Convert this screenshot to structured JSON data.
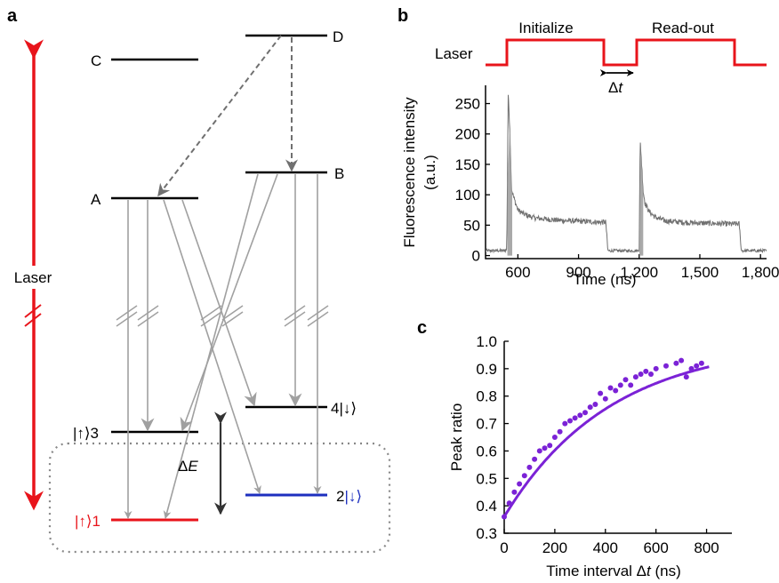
{
  "panel_a": {
    "panel_label": "a",
    "laser_label": "Laser",
    "levels": {
      "C": "C",
      "D": "D",
      "A": "A",
      "B": "B",
      "up3": "|↑⟩3",
      "down4": "4|↓⟩",
      "up1": "|↑⟩1",
      "down2_prefix": "2",
      "down2_ket": "|↓⟩"
    },
    "delta_e": {
      "symbol": "Δ",
      "letter": "E"
    },
    "colors": {
      "laser": "#e8141b",
      "up1_level": "#e8141b",
      "down2_level": "#1d2fbf",
      "arrow_gray": "#a0a0a0",
      "dashed_arrow": "#707070",
      "dotted_box": "#888888"
    }
  },
  "panel_b": {
    "panel_label": "b",
    "laser_label": "Laser",
    "pulse_labels": {
      "initialize": "Initialize",
      "readout": "Read-out"
    },
    "delta_t": {
      "symbol": "Δ",
      "letter": "t"
    },
    "trace_color": "#707070",
    "pulse_color": "#e8141b"
  },
  "panel_c": {
    "panel_label": "c",
    "fit_color": "#7b22d6"
  },
  "chart_data": [
    {
      "type": "line",
      "panel": "b",
      "xlabel": "Time (ns)",
      "ylabel": "Fluorescence intensity (a.u.)",
      "ylabel_lines": [
        "Fluorescence intensity",
        "(a.u.)"
      ],
      "x_ticks": [
        "600",
        "900",
        "1,200",
        "1,500",
        "1,800"
      ],
      "x_tick_values": [
        600,
        900,
        1200,
        1500,
        1800
      ],
      "y_ticks": [
        "0",
        "50",
        "100",
        "150",
        "200",
        "250"
      ],
      "y_tick_values": [
        0,
        50,
        100,
        150,
        200,
        250
      ],
      "xlim": [
        440,
        1830
      ],
      "ylim": [
        -5,
        280
      ],
      "grid": false,
      "series": [
        {
          "x": [
            440,
            535,
            545,
            552,
            560,
            568,
            580,
            600,
            630,
            680,
            800,
            1000,
            1035,
            1045,
            1100,
            1190,
            1200,
            1205,
            1212,
            1220,
            1230,
            1250,
            1280,
            1330,
            1450,
            1650,
            1695,
            1705,
            1760,
            1830
          ],
          "y": [
            8,
            8,
            10,
            265,
            210,
            110,
            95,
            75,
            68,
            62,
            58,
            55,
            55,
            8,
            8,
            8,
            10,
            190,
            150,
            105,
            85,
            72,
            63,
            57,
            54,
            52,
            52,
            8,
            8,
            8
          ]
        }
      ]
    },
    {
      "type": "scatter",
      "panel": "c",
      "xlabel_text": "Time interval ",
      "xlabel_symbol": "Δ",
      "xlabel_var": "t",
      "xlabel_unit": " (ns)",
      "ylabel": "Peak ratio",
      "x_ticks": [
        "0",
        "200",
        "400",
        "600",
        "800"
      ],
      "x_tick_values": [
        0,
        200,
        400,
        600,
        800
      ],
      "y_ticks": [
        "0.3",
        "0.4",
        "0.5",
        "0.6",
        "0.7",
        "0.8",
        "0.9",
        "1.0"
      ],
      "y_tick_values": [
        0.3,
        0.4,
        0.5,
        0.6,
        0.7,
        0.8,
        0.9,
        1.0
      ],
      "xlim": [
        0,
        900
      ],
      "ylim": [
        0.3,
        1.0
      ],
      "grid": false,
      "series": [
        {
          "x": [
            0,
            20,
            40,
            60,
            80,
            100,
            120,
            140,
            160,
            180,
            200,
            220,
            240,
            260,
            280,
            300,
            320,
            340,
            360,
            380,
            400,
            420,
            440,
            460,
            480,
            500,
            520,
            540,
            560,
            580,
            600,
            640,
            680,
            700,
            720,
            740,
            760,
            780
          ],
          "y": [
            0.36,
            0.41,
            0.45,
            0.48,
            0.51,
            0.54,
            0.57,
            0.6,
            0.61,
            0.62,
            0.65,
            0.67,
            0.7,
            0.71,
            0.72,
            0.73,
            0.74,
            0.76,
            0.77,
            0.81,
            0.79,
            0.83,
            0.82,
            0.84,
            0.86,
            0.84,
            0.87,
            0.88,
            0.89,
            0.88,
            0.9,
            0.91,
            0.92,
            0.93,
            0.87,
            0.9,
            0.91,
            0.92
          ]
        }
      ],
      "fit": {
        "model": "exponential",
        "y0": 0.36,
        "y_inf": 1.0,
        "tau": 420,
        "x_range": [
          0,
          810
        ]
      }
    }
  ]
}
